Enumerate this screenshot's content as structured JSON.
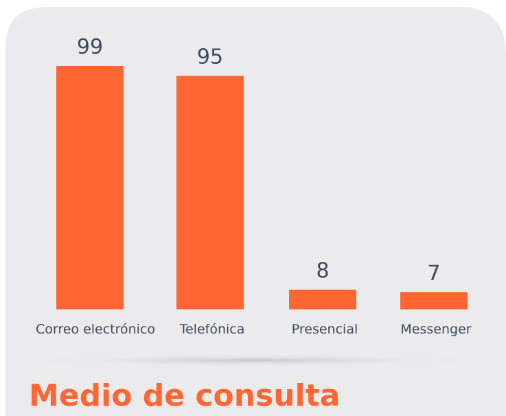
{
  "chart_data": {
    "type": "bar",
    "title": "Medio de consulta",
    "categories": [
      "Correo electrónico",
      "Telefónica",
      "Presencial",
      "Messenger"
    ],
    "values": [
      99,
      95,
      8,
      7
    ],
    "color": "#ff6633"
  }
}
